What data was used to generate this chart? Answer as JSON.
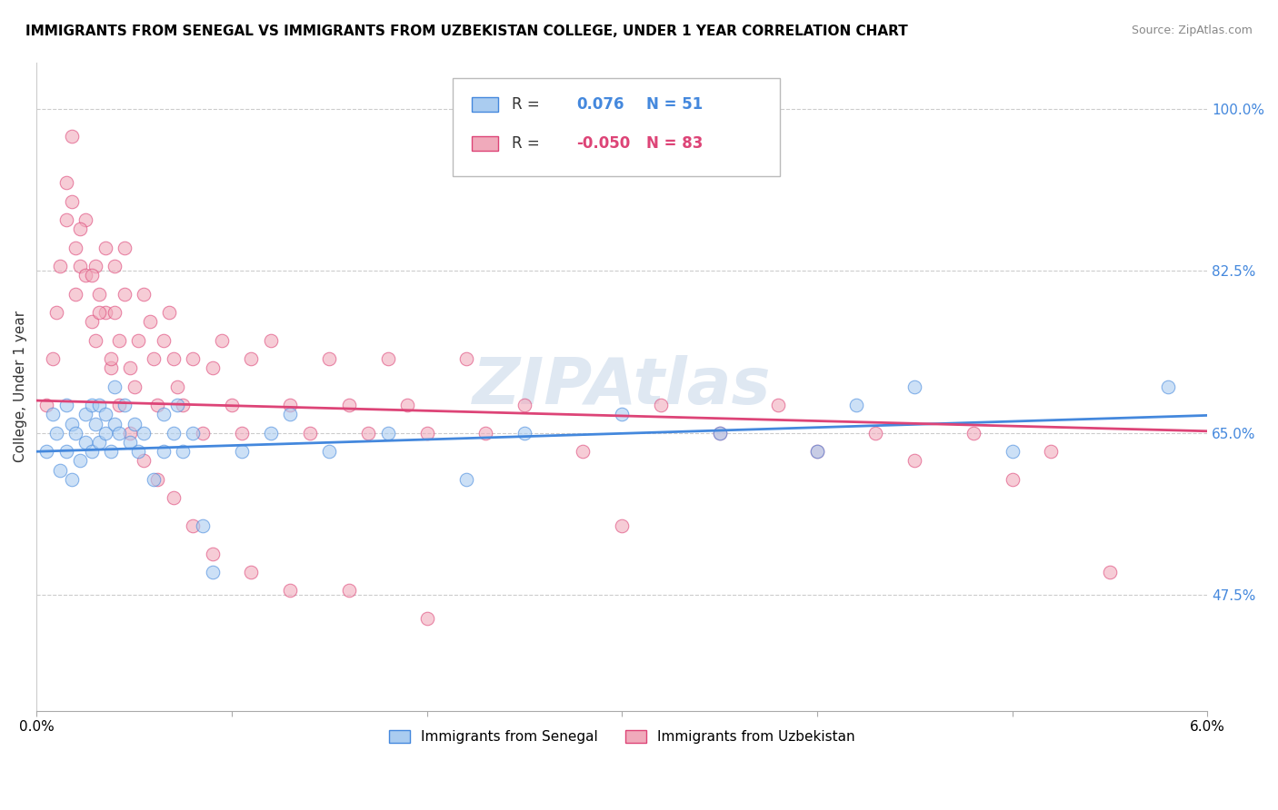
{
  "title": "IMMIGRANTS FROM SENEGAL VS IMMIGRANTS FROM UZBEKISTAN COLLEGE, UNDER 1 YEAR CORRELATION CHART",
  "source": "Source: ZipAtlas.com",
  "ylabel": "College, Under 1 year",
  "xlim": [
    0.0,
    6.0
  ],
  "ylim": [
    35.0,
    105.0
  ],
  "yticks": [
    47.5,
    65.0,
    82.5,
    100.0
  ],
  "xticks": [
    0.0,
    1.0,
    2.0,
    3.0,
    4.0,
    5.0,
    6.0
  ],
  "xtick_labels": [
    "0.0%",
    "",
    "",
    "",
    "",
    "",
    "6.0%"
  ],
  "ytick_labels": [
    "47.5%",
    "65.0%",
    "82.5%",
    "100.0%"
  ],
  "series1_color": "#aaccf0",
  "series2_color": "#f0aabb",
  "line1_color": "#4488dd",
  "line2_color": "#dd4477",
  "series1_label": "Immigrants from Senegal",
  "series2_label": "Immigrants from Uzbekistan",
  "R1": 0.076,
  "N1": 51,
  "R2": -0.05,
  "N2": 83,
  "watermark": "ZIPAtlas",
  "series1_x": [
    0.05,
    0.08,
    0.1,
    0.12,
    0.15,
    0.15,
    0.18,
    0.18,
    0.2,
    0.22,
    0.25,
    0.25,
    0.28,
    0.28,
    0.3,
    0.32,
    0.32,
    0.35,
    0.35,
    0.38,
    0.4,
    0.4,
    0.42,
    0.45,
    0.48,
    0.5,
    0.52,
    0.55,
    0.6,
    0.65,
    0.65,
    0.7,
    0.72,
    0.75,
    0.8,
    0.85,
    0.9,
    1.05,
    1.2,
    1.3,
    1.5,
    1.8,
    2.2,
    2.5,
    3.0,
    3.5,
    4.0,
    4.2,
    4.5,
    5.0,
    5.8
  ],
  "series1_y": [
    63.0,
    67.0,
    65.0,
    61.0,
    68.0,
    63.0,
    66.0,
    60.0,
    65.0,
    62.0,
    67.0,
    64.0,
    68.0,
    63.0,
    66.0,
    64.0,
    68.0,
    65.0,
    67.0,
    63.0,
    66.0,
    70.0,
    65.0,
    68.0,
    64.0,
    66.0,
    63.0,
    65.0,
    60.0,
    63.0,
    67.0,
    65.0,
    68.0,
    63.0,
    65.0,
    55.0,
    50.0,
    63.0,
    65.0,
    67.0,
    63.0,
    65.0,
    60.0,
    65.0,
    67.0,
    65.0,
    63.0,
    68.0,
    70.0,
    63.0,
    70.0
  ],
  "series2_x": [
    0.05,
    0.08,
    0.1,
    0.12,
    0.15,
    0.15,
    0.18,
    0.2,
    0.2,
    0.22,
    0.25,
    0.25,
    0.28,
    0.3,
    0.3,
    0.32,
    0.35,
    0.35,
    0.38,
    0.4,
    0.4,
    0.42,
    0.45,
    0.45,
    0.48,
    0.5,
    0.52,
    0.55,
    0.58,
    0.6,
    0.62,
    0.65,
    0.68,
    0.7,
    0.72,
    0.75,
    0.8,
    0.85,
    0.9,
    0.95,
    1.0,
    1.05,
    1.1,
    1.2,
    1.3,
    1.4,
    1.5,
    1.6,
    1.7,
    1.8,
    1.9,
    2.0,
    2.2,
    2.3,
    2.5,
    2.8,
    3.0,
    3.2,
    3.5,
    3.8,
    4.0,
    4.3,
    4.5,
    4.8,
    5.0,
    5.2,
    5.5,
    0.18,
    0.22,
    0.28,
    0.32,
    0.38,
    0.42,
    0.48,
    0.55,
    0.62,
    0.7,
    0.8,
    0.9,
    1.1,
    1.3,
    1.6,
    2.0
  ],
  "series2_y": [
    68.0,
    73.0,
    78.0,
    83.0,
    88.0,
    92.0,
    97.0,
    85.0,
    80.0,
    83.0,
    88.0,
    82.0,
    77.0,
    83.0,
    75.0,
    80.0,
    78.0,
    85.0,
    72.0,
    78.0,
    83.0,
    75.0,
    80.0,
    85.0,
    72.0,
    70.0,
    75.0,
    80.0,
    77.0,
    73.0,
    68.0,
    75.0,
    78.0,
    73.0,
    70.0,
    68.0,
    73.0,
    65.0,
    72.0,
    75.0,
    68.0,
    65.0,
    73.0,
    75.0,
    68.0,
    65.0,
    73.0,
    68.0,
    65.0,
    73.0,
    68.0,
    65.0,
    73.0,
    65.0,
    68.0,
    63.0,
    55.0,
    68.0,
    65.0,
    68.0,
    63.0,
    65.0,
    62.0,
    65.0,
    60.0,
    63.0,
    50.0,
    90.0,
    87.0,
    82.0,
    78.0,
    73.0,
    68.0,
    65.0,
    62.0,
    60.0,
    58.0,
    55.0,
    52.0,
    50.0,
    48.0,
    48.0,
    45.0
  ]
}
